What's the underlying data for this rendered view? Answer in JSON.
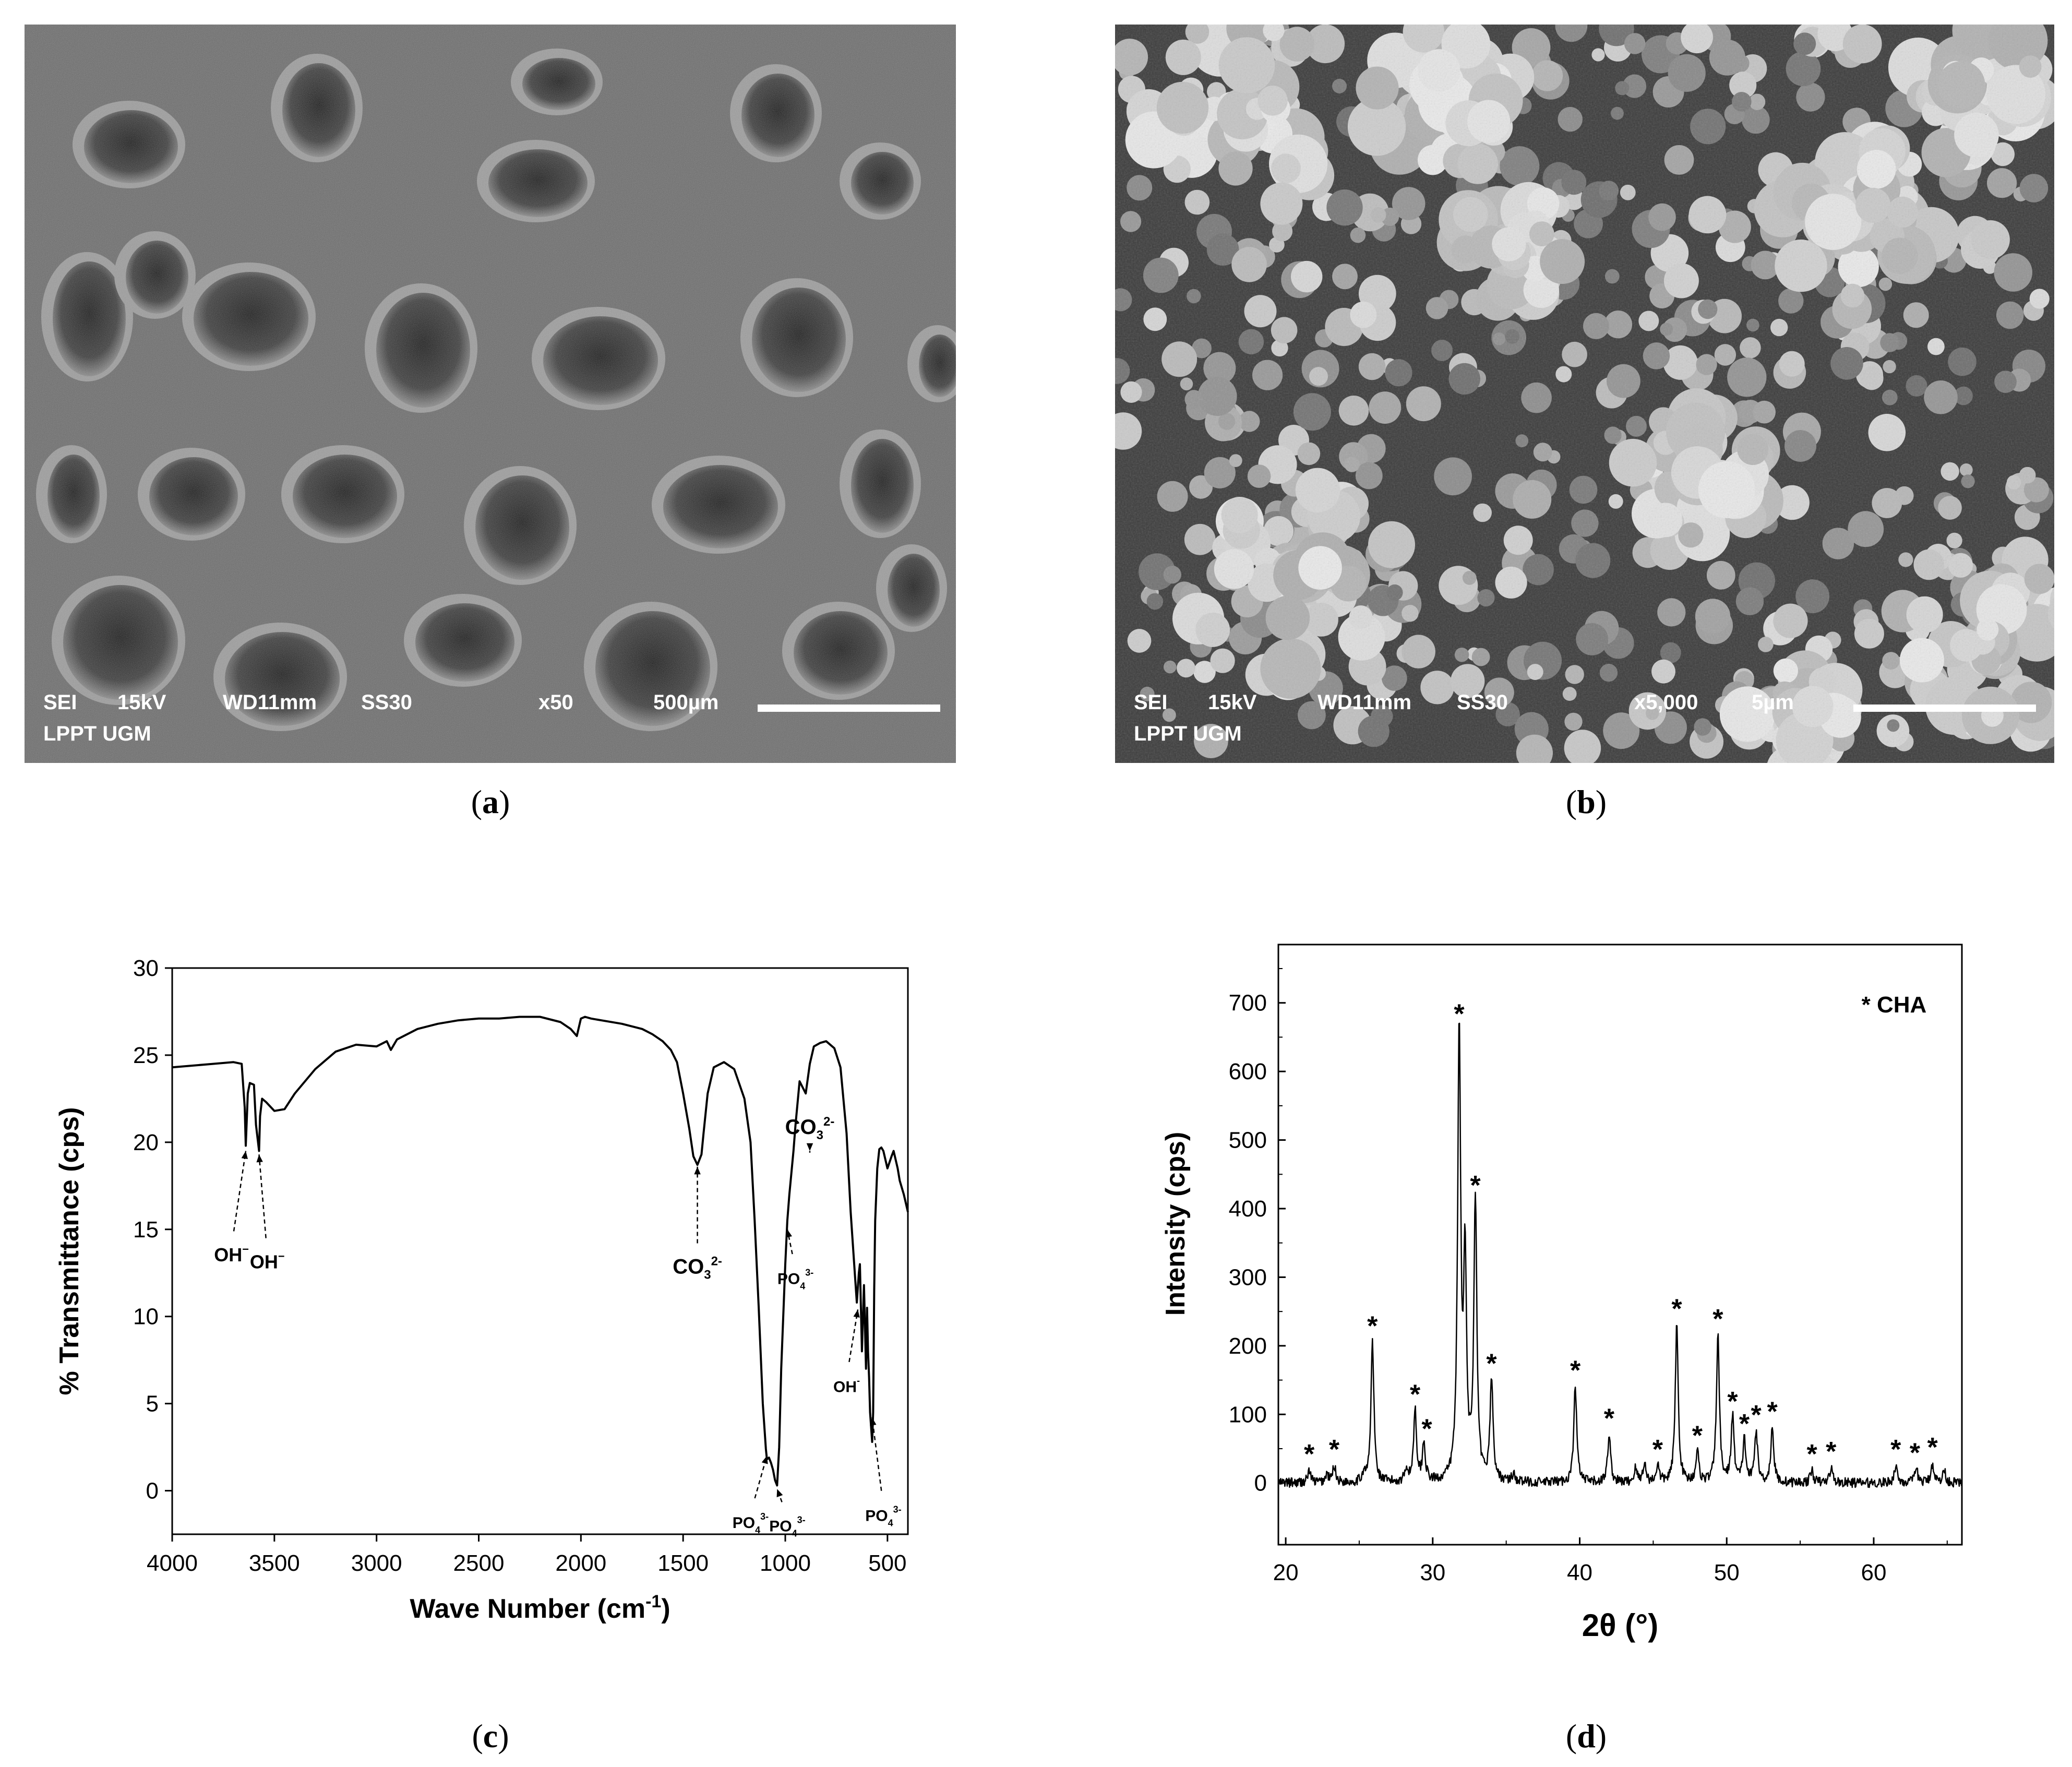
{
  "panels": {
    "a": {
      "caption_letter": "a",
      "info": {
        "detector": "SEI",
        "voltage": "15kV",
        "wd": "WD11mm",
        "ss": "SS30",
        "magnification": "x50",
        "scale": "500µm",
        "lab": "LPPT UGM"
      }
    },
    "b": {
      "caption_letter": "b",
      "info": {
        "detector": "SEI",
        "voltage": "15kV",
        "wd": "WD11mm",
        "ss": "SS30",
        "magnification": "x5,000",
        "scale": "5µm",
        "lab": "LPPT UGM"
      }
    },
    "c": {
      "caption_letter": "c"
    },
    "d": {
      "caption_letter": "d"
    }
  },
  "chart_data": [
    {
      "panel": "c",
      "type": "line",
      "xlabel": "Wave Number (cm",
      "xlabel_sup": "-1",
      "xlabel_end": ")",
      "ylabel": "% Transmittance (cps)",
      "xlim": [
        4000,
        400
      ],
      "ylim": [
        -2.5,
        30
      ],
      "x_ticks": [
        4000,
        3500,
        3000,
        2500,
        2000,
        1500,
        1000,
        500
      ],
      "y_ticks": [
        0,
        5,
        10,
        15,
        20,
        25,
        30
      ],
      "grid": false,
      "series": [
        {
          "x": [
            4000,
            3800,
            3700,
            3660,
            3645,
            3640,
            3630,
            3620,
            3600,
            3590,
            3575,
            3570,
            3560,
            3540,
            3500,
            3450,
            3400,
            3300,
            3200,
            3100,
            3000,
            2950,
            2930,
            2900,
            2800,
            2700,
            2600,
            2500,
            2400,
            2300,
            2200,
            2100,
            2050,
            2020,
            2000,
            1980,
            1950,
            1900,
            1800,
            1700,
            1650,
            1600,
            1560,
            1530,
            1500,
            1470,
            1450,
            1430,
            1410,
            1400,
            1380,
            1350,
            1300,
            1250,
            1200,
            1170,
            1150,
            1130,
            1110,
            1095,
            1090,
            1080,
            1070,
            1060,
            1050,
            1040,
            1030,
            1020,
            1000,
            990,
            980,
            960,
            950,
            930,
            900,
            880,
            870,
            860,
            830,
            800,
            760,
            730,
            700,
            680,
            660,
            650,
            640,
            635,
            625,
            615,
            605,
            600,
            595,
            590,
            585,
            575,
            570,
            565,
            560,
            550,
            540,
            530,
            520,
            500,
            480,
            470,
            460,
            450,
            440,
            420,
            400
          ],
          "y": [
            24.3,
            24.5,
            24.6,
            24.5,
            22.0,
            19.8,
            22.8,
            23.4,
            23.3,
            21.0,
            19.5,
            21.5,
            22.5,
            22.3,
            21.8,
            21.9,
            22.8,
            24.2,
            25.2,
            25.6,
            25.5,
            25.8,
            25.3,
            25.9,
            26.5,
            26.8,
            27.0,
            27.1,
            27.1,
            27.2,
            27.2,
            26.9,
            26.5,
            26.1,
            27.1,
            27.2,
            27.1,
            27.0,
            26.8,
            26.5,
            26.2,
            25.8,
            25.3,
            24.6,
            22.8,
            20.8,
            19.2,
            18.7,
            19.3,
            20.5,
            22.8,
            24.3,
            24.6,
            24.2,
            22.5,
            20.0,
            15.5,
            10.5,
            5.0,
            2.4,
            1.8,
            1.9,
            1.6,
            1.2,
            0.6,
            0.3,
            2.5,
            7.0,
            13.0,
            15.5,
            17.0,
            19.5,
            21.0,
            23.5,
            22.8,
            24.5,
            25.0,
            25.5,
            25.7,
            25.8,
            25.4,
            24.3,
            20.5,
            16.0,
            12.5,
            10.8,
            12.5,
            13.0,
            8.0,
            11.8,
            7.0,
            10.5,
            8.0,
            6.5,
            4.5,
            2.8,
            4.5,
            11.5,
            15.5,
            18.5,
            19.6,
            19.7,
            19.5,
            18.5,
            19.2,
            19.5,
            19.0,
            18.5,
            17.8,
            17.0,
            16.0
          ]
        }
      ],
      "annotations": [
        {
          "label": "OH",
          "sup": "−",
          "sub": "",
          "x": 3640,
          "y": 19.5,
          "tx": 3710,
          "ty": 14.0
        },
        {
          "label": "OH",
          "sup": "−",
          "sub": "",
          "x": 3575,
          "y": 19.3,
          "tx": 3535,
          "ty": 13.6
        },
        {
          "label": "CO",
          "sub": "3",
          "sup": "2-",
          "x": 1430,
          "y": 18.6,
          "tx": 1430,
          "ty": 13.3
        },
        {
          "label": "PO",
          "sub": "4",
          "sup": "3-",
          "x": 990,
          "y": 15.0,
          "tx": 950,
          "ty": 12.7
        },
        {
          "label": "CO",
          "sub": "3",
          "sup": "2-",
          "x": 880,
          "y": 19.5,
          "tx": 880,
          "ty": 20.3
        },
        {
          "label": "OH",
          "sup": "-",
          "sub": "",
          "x": 645,
          "y": 10.4,
          "tx": 700,
          "ty": 6.5
        },
        {
          "label": "PO",
          "sub": "4",
          "sup": "3-",
          "x": 1090,
          "y": 2.0,
          "tx": 1170,
          "ty": -1.3
        },
        {
          "label": "PO",
          "sub": "4",
          "sup": "3-",
          "x": 1040,
          "y": 0.1,
          "tx": 990,
          "ty": -1.5
        },
        {
          "label": "PO",
          "sub": "4",
          "sup": "3-",
          "x": 575,
          "y": 4.2,
          "tx": 520,
          "ty": -0.9
        }
      ]
    },
    {
      "panel": "d",
      "type": "line",
      "xlabel": "2θ (°)",
      "ylabel": "Intensity (cps)",
      "xlim": [
        19.5,
        66
      ],
      "ylim": [
        -90,
        785
      ],
      "x_ticks": [
        20,
        30,
        40,
        50,
        60
      ],
      "y_ticks": [
        0,
        100,
        200,
        300,
        400,
        500,
        600,
        700
      ],
      "grid": false,
      "legend": "* CHA",
      "legend_position": "top-right",
      "series": [
        {
          "name": "CHA",
          "peaks": [
            {
              "x": 21.6,
              "y": 18
            },
            {
              "x": 22.8,
              "y": 12
            },
            {
              "x": 23.3,
              "y": 25
            },
            {
              "x": 25.3,
              "y": 12
            },
            {
              "x": 25.9,
              "y": 205
            },
            {
              "x": 28.2,
              "y": 20
            },
            {
              "x": 28.8,
              "y": 105
            },
            {
              "x": 29.4,
              "y": 55
            },
            {
              "x": 31.8,
              "y": 660
            },
            {
              "x": 32.2,
              "y": 310
            },
            {
              "x": 32.9,
              "y": 410
            },
            {
              "x": 34.0,
              "y": 150
            },
            {
              "x": 35.5,
              "y": 12
            },
            {
              "x": 39.7,
              "y": 140
            },
            {
              "x": 42.0,
              "y": 70
            },
            {
              "x": 43.8,
              "y": 20
            },
            {
              "x": 44.4,
              "y": 28
            },
            {
              "x": 45.3,
              "y": 25
            },
            {
              "x": 46.6,
              "y": 230
            },
            {
              "x": 48.0,
              "y": 45
            },
            {
              "x": 49.4,
              "y": 215
            },
            {
              "x": 50.4,
              "y": 95
            },
            {
              "x": 51.2,
              "y": 62
            },
            {
              "x": 52.0,
              "y": 75
            },
            {
              "x": 53.1,
              "y": 80
            },
            {
              "x": 55.8,
              "y": 18
            },
            {
              "x": 57.1,
              "y": 22
            },
            {
              "x": 61.5,
              "y": 25
            },
            {
              "x": 62.9,
              "y": 20
            },
            {
              "x": 64.0,
              "y": 28
            },
            {
              "x": 64.8,
              "y": 18
            }
          ]
        }
      ],
      "star_positions": [
        21.6,
        23.3,
        25.9,
        28.8,
        29.6,
        31.8,
        32.9,
        34.0,
        39.7,
        42.0,
        45.3,
        46.6,
        48.0,
        49.4,
        50.4,
        51.2,
        52.0,
        53.1,
        55.8,
        57.1,
        61.5,
        62.8,
        64.0
      ],
      "star_heights": [
        18,
        25,
        205,
        105,
        55,
        660,
        410,
        150,
        140,
        70,
        25,
        230,
        45,
        215,
        95,
        62,
        75,
        80,
        18,
        22,
        25,
        20,
        28
      ]
    }
  ]
}
